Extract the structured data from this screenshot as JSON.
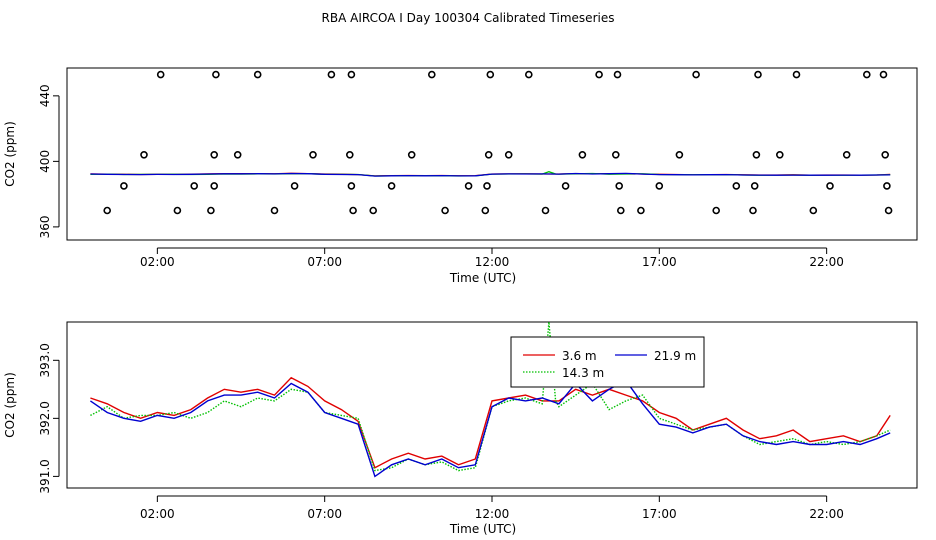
{
  "title": "RBA AIRCOA I  Day 100304  Calibrated Timeseries",
  "chart_data": [
    {
      "type": "scatter",
      "xlabel": "Time (UTC)",
      "ylabel": "CO2 (ppm)",
      "xunit": "hour of day (UTC)",
      "xlim": [
        -0.7,
        24.7
      ],
      "ylim": [
        352,
        457
      ],
      "x_ticks": [
        2,
        7,
        12,
        17,
        22
      ],
      "x_tick_labels": [
        "02:00",
        "07:00",
        "12:00",
        "17:00",
        "22:00"
      ],
      "y_ticks": [
        360,
        400,
        440
      ],
      "y_tick_labels": [
        "360",
        "400",
        "440"
      ],
      "grid": false,
      "flag_points": {
        "x": [
          0.5,
          1.0,
          1.6,
          2.1,
          2.6,
          3.1,
          3.6,
          3.7,
          3.7,
          3.75,
          4.4,
          5.0,
          5.5,
          6.1,
          6.65,
          7.2,
          7.75,
          7.8,
          7.8,
          7.85,
          8.45,
          9.0,
          9.6,
          10.2,
          10.6,
          11.3,
          11.8,
          11.85,
          11.9,
          11.95,
          12.5,
          13.1,
          13.6,
          14.2,
          14.7,
          15.2,
          15.7,
          15.75,
          15.8,
          15.85,
          16.45,
          17.0,
          17.6,
          18.1,
          18.7,
          19.3,
          19.8,
          19.85,
          19.9,
          19.95,
          20.6,
          21.1,
          21.6,
          22.1,
          22.6,
          23.2,
          23.7,
          23.75,
          23.8,
          23.85
        ],
        "y": [
          370,
          385,
          404,
          453,
          370,
          385,
          370,
          385,
          404,
          453,
          404,
          453,
          370,
          385,
          404,
          453,
          404,
          453,
          385,
          370,
          370,
          385,
          404,
          453,
          370,
          385,
          370,
          385,
          404,
          453,
          404,
          453,
          370,
          385,
          404,
          453,
          404,
          453,
          385,
          370,
          370,
          385,
          404,
          453,
          370,
          385,
          370,
          385,
          404,
          453,
          404,
          453,
          370,
          385,
          404,
          453,
          453,
          404,
          385,
          370
        ]
      },
      "series": [
        {
          "name": "3.6 m",
          "color": "#e00000",
          "data_ref": "chart_data.1.series.0"
        },
        {
          "name": "14.3 m",
          "color": "#00c000",
          "data_ref": "chart_data.1.series.1"
        },
        {
          "name": "21.9 m",
          "color": "#0000d0",
          "data_ref": "chart_data.1.series.2"
        }
      ]
    },
    {
      "type": "line",
      "xlabel": "Time (UTC)",
      "ylabel": "CO2 (ppm)",
      "xunit": "hour of day (UTC)",
      "xlim": [
        -0.7,
        24.7
      ],
      "ylim": [
        390.8,
        393.66
      ],
      "x_ticks": [
        2,
        7,
        12,
        17,
        22
      ],
      "x_tick_labels": [
        "02:00",
        "07:00",
        "12:00",
        "17:00",
        "22:00"
      ],
      "y_ticks": [
        391.0,
        392.0,
        393.0
      ],
      "y_tick_labels": [
        "391.0",
        "392.0",
        "393.0"
      ],
      "grid": false,
      "legend": {
        "position": "top-center",
        "items": [
          "3.6 m",
          "21.9 m",
          "14.3 m"
        ]
      },
      "series": [
        {
          "name": "3.6 m",
          "color": "#e00000",
          "dash": "solid",
          "x": [
            0.0,
            0.5,
            1.0,
            1.5,
            2.0,
            2.5,
            3.0,
            3.5,
            4.0,
            4.5,
            5.0,
            5.5,
            6.0,
            6.5,
            7.0,
            7.5,
            8.0,
            8.5,
            9.0,
            9.5,
            10.0,
            10.5,
            11.0,
            11.5,
            12.0,
            12.5,
            13.0,
            13.5,
            14.0,
            14.5,
            15.0,
            15.5,
            16.0,
            16.5,
            17.0,
            17.5,
            18.0,
            18.5,
            19.0,
            19.5,
            20.0,
            20.5,
            21.0,
            21.5,
            22.0,
            22.5,
            23.0,
            23.5,
            23.9
          ],
          "values": [
            392.35,
            392.25,
            392.1,
            392.0,
            392.1,
            392.05,
            392.15,
            392.35,
            392.5,
            392.45,
            392.5,
            392.4,
            392.7,
            392.55,
            392.3,
            392.15,
            391.95,
            391.15,
            391.3,
            391.4,
            391.3,
            391.35,
            391.2,
            391.3,
            392.3,
            392.35,
            392.4,
            392.3,
            392.3,
            392.5,
            392.4,
            392.5,
            392.4,
            392.3,
            392.1,
            392.0,
            391.8,
            391.9,
            392.0,
            391.8,
            391.65,
            391.7,
            391.8,
            391.6,
            391.65,
            391.7,
            391.6,
            391.7,
            392.05
          ]
        },
        {
          "name": "14.3 m",
          "color": "#00c000",
          "dash": "dotted",
          "x": [
            0.0,
            0.5,
            1.0,
            1.5,
            2.0,
            2.5,
            3.0,
            3.5,
            4.0,
            4.5,
            5.0,
            5.5,
            6.0,
            6.5,
            7.0,
            7.5,
            8.0,
            8.5,
            9.0,
            9.5,
            10.0,
            10.5,
            11.0,
            11.5,
            12.0,
            12.5,
            13.0,
            13.5,
            13.7,
            13.9,
            14.0,
            14.5,
            15.0,
            15.5,
            16.0,
            16.5,
            17.0,
            17.5,
            18.0,
            18.5,
            19.0,
            19.5,
            20.0,
            20.5,
            21.0,
            21.5,
            22.0,
            22.5,
            23.0,
            23.5,
            23.9
          ],
          "values": [
            392.05,
            392.2,
            392.0,
            392.05,
            392.05,
            392.1,
            392.0,
            392.1,
            392.3,
            392.2,
            392.35,
            392.3,
            392.5,
            392.45,
            392.1,
            392.05,
            392.0,
            391.1,
            391.15,
            391.3,
            391.2,
            391.25,
            391.1,
            391.15,
            392.2,
            392.3,
            392.35,
            392.25,
            393.7,
            392.3,
            392.2,
            392.4,
            392.6,
            392.15,
            392.3,
            392.4,
            392.0,
            391.9,
            391.8,
            391.85,
            391.9,
            391.7,
            391.55,
            391.6,
            391.65,
            391.55,
            391.6,
            391.55,
            391.6,
            391.7,
            391.8
          ]
        },
        {
          "name": "21.9 m",
          "color": "#0000d0",
          "dash": "solid",
          "x": [
            0.0,
            0.5,
            1.0,
            1.5,
            2.0,
            2.5,
            3.0,
            3.5,
            4.0,
            4.5,
            5.0,
            5.5,
            6.0,
            6.5,
            7.0,
            7.5,
            8.0,
            8.5,
            9.0,
            9.5,
            10.0,
            10.5,
            11.0,
            11.5,
            12.0,
            12.5,
            13.0,
            13.5,
            14.0,
            14.5,
            15.0,
            15.5,
            16.0,
            16.5,
            17.0,
            17.5,
            18.0,
            18.5,
            19.0,
            19.5,
            20.0,
            20.5,
            21.0,
            21.5,
            22.0,
            22.5,
            23.0,
            23.5,
            23.9
          ],
          "values": [
            392.3,
            392.1,
            392.0,
            391.95,
            392.05,
            392.0,
            392.1,
            392.3,
            392.4,
            392.4,
            392.45,
            392.35,
            392.6,
            392.45,
            392.1,
            392.0,
            391.9,
            391.0,
            391.2,
            391.3,
            391.2,
            391.3,
            391.15,
            391.2,
            392.2,
            392.35,
            392.3,
            392.35,
            392.25,
            392.6,
            392.3,
            392.5,
            392.65,
            392.25,
            391.9,
            391.85,
            391.75,
            391.85,
            391.9,
            391.7,
            391.6,
            391.55,
            391.6,
            391.55,
            391.55,
            391.6,
            391.55,
            391.65,
            391.75
          ]
        }
      ]
    }
  ]
}
